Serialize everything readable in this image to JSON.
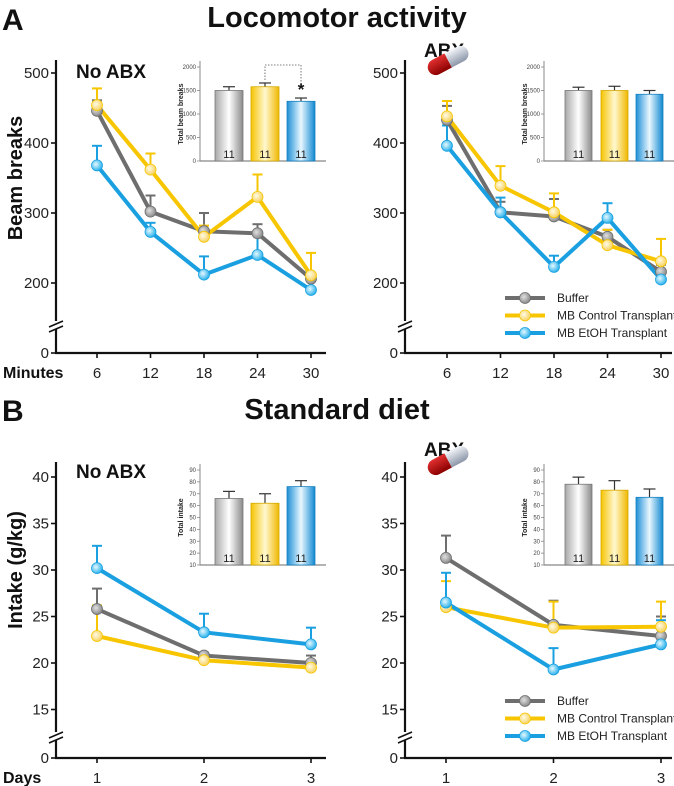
{
  "figure": {
    "panel_a_letter": "A",
    "panel_a_title": "Locomotor activity",
    "panel_b_letter": "B",
    "panel_b_title": "Standard diet"
  },
  "legend": [
    "Buffer",
    "MB Control Transplant",
    "MB EtOH Transplant"
  ],
  "colors": {
    "Buffer": "#6e6e6e",
    "MB Control Transplant": "#f7c600",
    "MB EtOH Transplant": "#1aa0e0"
  },
  "icons": [
    "pill-icon"
  ],
  "chart_data": [
    {
      "id": "a-noabx",
      "type": "line",
      "title": "No ABX",
      "xlabel": "Minutes",
      "ylabel": "Beam breaks",
      "x": [
        6,
        12,
        18,
        24,
        30
      ],
      "yticks": [
        0,
        200,
        300,
        400,
        500
      ],
      "axis_break": true,
      "ylim": [
        150,
        520
      ],
      "series": [
        {
          "name": "Buffer",
          "values": [
            446,
            302,
            274,
            271,
            206
          ],
          "sem": [
            15,
            23,
            26,
            13,
            5
          ]
        },
        {
          "name": "MB Control Transplant",
          "values": [
            454,
            362,
            266,
            323,
            211
          ],
          "sem": [
            24,
            23,
            16,
            32,
            32
          ]
        },
        {
          "name": "MB EtOH Transplant",
          "values": [
            368,
            273,
            212,
            240,
            190
          ],
          "sem": [
            28,
            13,
            26,
            28,
            13
          ]
        }
      ],
      "inset": {
        "type": "bar",
        "ylabel": "Total beam breaks",
        "yticks": [
          0,
          500,
          1000,
          1500,
          2000
        ],
        "ylim": [
          0,
          2000
        ],
        "values": [
          1500,
          1580,
          1270
        ],
        "sem": [
          80,
          80,
          70
        ],
        "n": [
          "11",
          "11",
          "11"
        ],
        "significance": {
          "between": [
            1,
            2
          ],
          "label": "*"
        }
      }
    },
    {
      "id": "a-abx",
      "type": "line",
      "title": "ABX",
      "xlabel": "",
      "ylabel": "",
      "x": [
        6,
        12,
        18,
        24,
        30
      ],
      "yticks": [
        0,
        200,
        300,
        400,
        500
      ],
      "axis_break": true,
      "ylim": [
        150,
        520
      ],
      "series": [
        {
          "name": "Buffer",
          "values": [
            433,
            301,
            295,
            266,
            216
          ],
          "sem": [
            20,
            15,
            25,
            10,
            10
          ]
        },
        {
          "name": "MB Control Transplant",
          "values": [
            438,
            339,
            301,
            254,
            231
          ],
          "sem": [
            22,
            28,
            27,
            22,
            32
          ]
        },
        {
          "name": "MB EtOH Transplant",
          "values": [
            396,
            301,
            223,
            293,
            205
          ],
          "sem": [
            29,
            21,
            16,
            21,
            10
          ]
        }
      ],
      "legend_placement": "bottom-right",
      "inset": {
        "type": "bar",
        "ylabel": "Total beam breaks",
        "yticks": [
          0,
          500,
          1000,
          1500,
          2000
        ],
        "ylim": [
          0,
          2000
        ],
        "values": [
          1500,
          1500,
          1420
        ],
        "sem": [
          70,
          90,
          80
        ],
        "n": [
          "11",
          "11",
          "11"
        ]
      }
    },
    {
      "id": "b-noabx",
      "type": "line",
      "title": "No ABX",
      "xlabel": "Days",
      "ylabel": "Intake (g/kg)",
      "x": [
        1,
        2,
        3
      ],
      "yticks": [
        0,
        15,
        20,
        25,
        30,
        35,
        40
      ],
      "axis_break": true,
      "ylim": [
        12.5,
        41.5
      ],
      "series": [
        {
          "name": "Buffer",
          "values": [
            25.8,
            20.8,
            20.0
          ],
          "sem": [
            2.2,
            0.3,
            0.8
          ]
        },
        {
          "name": "MB Control Transplant",
          "values": [
            22.9,
            20.3,
            19.5
          ],
          "sem": [
            3.3,
            0.3,
            0.5
          ]
        },
        {
          "name": "MB EtOH Transplant",
          "values": [
            30.2,
            23.3,
            22.0
          ],
          "sem": [
            2.4,
            2.0,
            1.8
          ]
        }
      ],
      "inset": {
        "type": "bar",
        "ylabel": "Total intake",
        "yticks": [
          10,
          20,
          30,
          40,
          50,
          60,
          70,
          80,
          90
        ],
        "ylim": [
          10,
          95
        ],
        "values": [
          66,
          62,
          76
        ],
        "sem": [
          6,
          8,
          5
        ],
        "n": [
          "11",
          "11",
          "11"
        ]
      }
    },
    {
      "id": "b-abx",
      "type": "line",
      "title": "ABX",
      "xlabel": "",
      "ylabel": "",
      "x": [
        1,
        2,
        3
      ],
      "yticks": [
        0,
        15,
        20,
        25,
        30,
        35,
        40
      ],
      "axis_break": true,
      "ylim": [
        12.5,
        41.5
      ],
      "series": [
        {
          "name": "Buffer",
          "values": [
            31.3,
            24.1,
            22.9
          ],
          "sem": [
            2.4,
            2.6,
            2.1
          ]
        },
        {
          "name": "MB Control Transplant",
          "values": [
            26.0,
            23.8,
            23.9
          ],
          "sem": [
            2.8,
            2.8,
            2.7
          ]
        },
        {
          "name": "MB EtOH Transplant",
          "values": [
            26.5,
            19.3,
            22.0
          ],
          "sem": [
            3.2,
            2.3,
            2.6
          ]
        }
      ],
      "legend_placement": "bottom-right",
      "inset": {
        "type": "bar",
        "ylabel": "Total intake",
        "yticks": [
          10,
          20,
          30,
          40,
          50,
          60,
          70,
          80,
          90
        ],
        "ylim": [
          10,
          95
        ],
        "values": [
          78,
          73,
          67
        ],
        "sem": [
          6,
          8,
          7
        ],
        "n": [
          "11",
          "11",
          "11"
        ]
      }
    }
  ]
}
